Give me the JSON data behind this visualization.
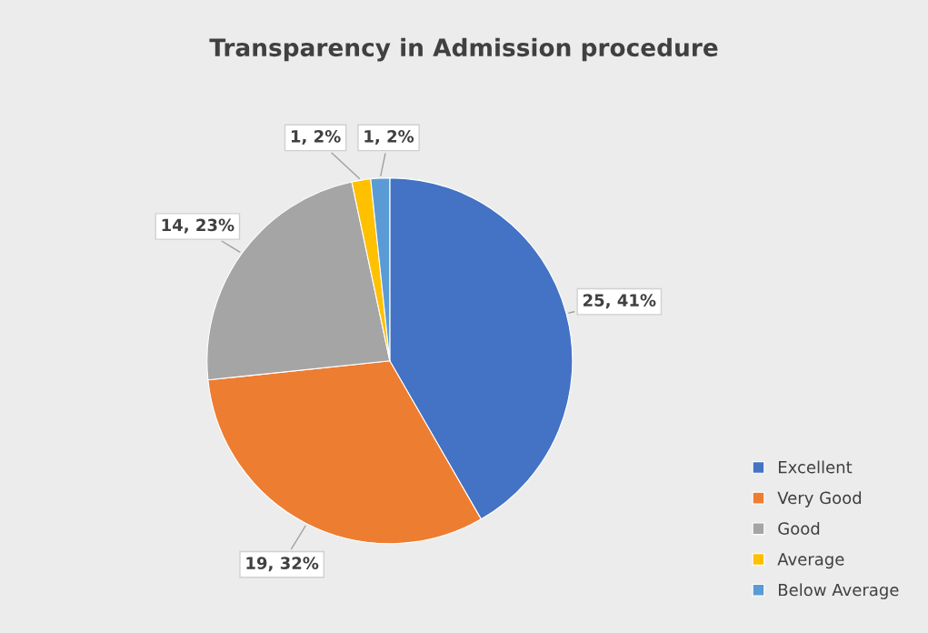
{
  "chart_data": {
    "type": "pie",
    "title": "Transparency in Admission procedure",
    "categories": [
      "Excellent",
      "Very Good",
      "Good",
      "Average",
      "Below Average"
    ],
    "values": [
      25,
      19,
      14,
      1,
      1
    ],
    "colors": [
      "#4472c4",
      "#ed7d31",
      "#a5a5a5",
      "#ffc000",
      "#5b9bd5"
    ],
    "value_labels": [
      "25, 41%",
      "19, 32%",
      "14, 23%",
      "1, 2%",
      "1, 2%"
    ],
    "legend": "bottom right"
  }
}
